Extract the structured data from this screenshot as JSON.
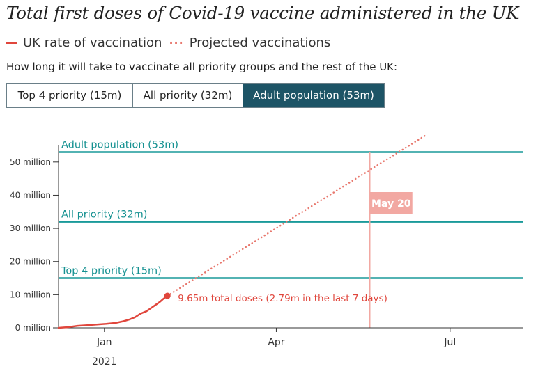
{
  "header": {
    "title": "Total first doses of Covid-19 vaccine administered in the UK",
    "legend_actual": "UK rate of vaccination",
    "legend_projected": "Projected vaccinations",
    "subtitle": "How long it will take to vaccinate all priority groups and the rest of the UK:"
  },
  "tabs": [
    {
      "label": "Top 4 priority (15m)",
      "selected": false
    },
    {
      "label": "All priority (32m)",
      "selected": false
    },
    {
      "label": "Adult population (53m)",
      "selected": true
    }
  ],
  "colors": {
    "actual": "#e0463c",
    "projected": "#e8786e",
    "threshold": "#1a9a9a",
    "threshold_label": "#159191",
    "marker_line": "#f2a8a2",
    "marker_label_bg": "#f2a8a2",
    "selected_tab": "#1d5466"
  },
  "chart_data": {
    "type": "line",
    "title": "Total first doses of Covid-19 vaccine administered in the UK",
    "xlabel": "",
    "ylabel": "",
    "x_unit": "days since 8 Dec 2020",
    "xlim": [
      0,
      243
    ],
    "ylim": [
      0,
      55
    ],
    "y_ticks": [
      0,
      10,
      20,
      30,
      40,
      50
    ],
    "y_tick_labels": [
      "0 million",
      "10 million",
      "20 million",
      "30 million",
      "40 million",
      "50 million"
    ],
    "x_ticks": [
      24,
      114,
      205
    ],
    "x_tick_labels": [
      "Jan",
      "Apr",
      "Jul"
    ],
    "x_sublabel": "2021",
    "series": [
      {
        "name": "UK rate of vaccination",
        "style": "solid",
        "x": [
          0,
          5,
          10,
          15,
          20,
          25,
          30,
          34,
          37,
          40,
          43,
          46,
          49,
          51,
          53,
          55,
          57
        ],
        "y": [
          0,
          0.2,
          0.6,
          0.8,
          1.0,
          1.2,
          1.5,
          2.0,
          2.5,
          3.2,
          4.3,
          5.0,
          6.2,
          7.0,
          7.8,
          8.8,
          9.65
        ]
      },
      {
        "name": "Projected vaccinations",
        "style": "dotted",
        "x": [
          57,
          192
        ],
        "y": [
          9.65,
          58
        ]
      }
    ],
    "thresholds": [
      {
        "label": "Top 4 priority (15m)",
        "value": 15
      },
      {
        "label": "All priority (32m)",
        "value": 32
      },
      {
        "label": "Adult population (53m)",
        "value": 53
      }
    ],
    "endpoint_annotation": "9.65m total doses (2.79m in the last 7 days)",
    "marker": {
      "label": "May 20",
      "x": 163
    }
  }
}
